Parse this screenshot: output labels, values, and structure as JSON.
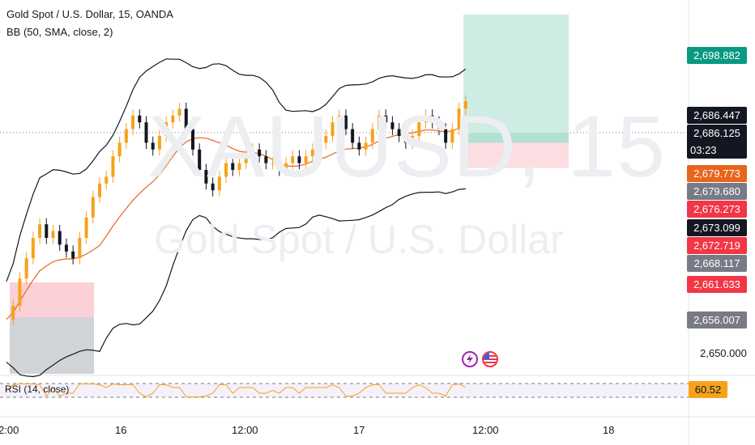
{
  "header": {
    "title": "Gold Spot / U.S. Dollar, 15, OANDA",
    "indicator": "BB (50, SMA, close, 2)"
  },
  "watermark": {
    "symbol": "XAUUSD, 15",
    "name": "Gold Spot / U.S. Dollar"
  },
  "colors": {
    "up_candle": "#f7a21b",
    "down_candle": "#131722",
    "bb_basis": "#e8651e",
    "bb_band": "#131722",
    "rsi_line": "#f7a21b",
    "target_zone": "#cfece4",
    "stop_zone": "#fcdde1",
    "past_target": "#fbd0d6",
    "past_stop": "#d1d4d6"
  },
  "price_scale": {
    "tags": [
      {
        "value": "2,698.882",
        "bg": "#089981",
        "fg": "#ffffff"
      },
      {
        "value": "2,686.447",
        "bg": "#131722",
        "fg": "#ffffff"
      },
      {
        "value": "2,686.125",
        "bg": "#131722",
        "fg": "#ffffff",
        "sub": "03:23"
      },
      {
        "value": "2,679.773",
        "bg": "#e8651e",
        "fg": "#ffffff"
      },
      {
        "value": "2,679.680",
        "bg": "#787b86",
        "fg": "#ffffff"
      },
      {
        "value": "2,676.273",
        "bg": "#f23645",
        "fg": "#ffffff"
      },
      {
        "value": "2,673.099",
        "bg": "#131722",
        "fg": "#ffffff"
      },
      {
        "value": "2,672.719",
        "bg": "#f23645",
        "fg": "#ffffff"
      },
      {
        "value": "2,668.117",
        "bg": "#787b86",
        "fg": "#ffffff"
      },
      {
        "value": "2,661.633",
        "bg": "#f23645",
        "fg": "#ffffff"
      },
      {
        "value": "2,656.007",
        "bg": "#787b86",
        "fg": "#ffffff"
      }
    ],
    "tick": "2,650.000"
  },
  "time_axis": [
    "2:00",
    "16",
    "12:00",
    "17",
    "12:00",
    "18"
  ],
  "rsi": {
    "label": "RSI (14, close)",
    "value": "60.52",
    "value_bg": "#f7a21b"
  },
  "chart_data": {
    "type": "candlestick",
    "interval": "15",
    "y_range": [
      2646,
      2701
    ],
    "series": [
      {
        "name": "BB (50, SMA, close, 2)",
        "kind": "bollinger"
      }
    ],
    "close_path": [
      2654,
      2656,
      2660,
      2663,
      2666,
      2668,
      2666,
      2667,
      2665,
      2664,
      2663,
      2666,
      2669,
      2672,
      2674,
      2675,
      2678,
      2680,
      2682,
      2684,
      2683,
      2680,
      2679,
      2681,
      2683,
      2684,
      2685,
      2682,
      2679,
      2676,
      2674,
      2673,
      2675,
      2677,
      2676,
      2677,
      2678,
      2679,
      2678,
      2677,
      2677,
      2676,
      2677,
      2678,
      2677,
      2678,
      2679,
      2680,
      2681,
      2683,
      2684,
      2682,
      2680,
      2679,
      2680,
      2682,
      2684,
      2683,
      2682,
      2681,
      2680,
      2681,
      2683,
      2684,
      2683,
      2682,
      2680,
      2682,
      2685,
      2686.1
    ],
    "positions": [
      {
        "entry": 2680.0,
        "target": 2698.882,
        "stop": 2676.273,
        "side": "long"
      },
      {
        "entry": 2661.633,
        "target": 2668.117,
        "stop": 2656.007,
        "side": "past"
      }
    ],
    "rsi_last": 60.52
  }
}
